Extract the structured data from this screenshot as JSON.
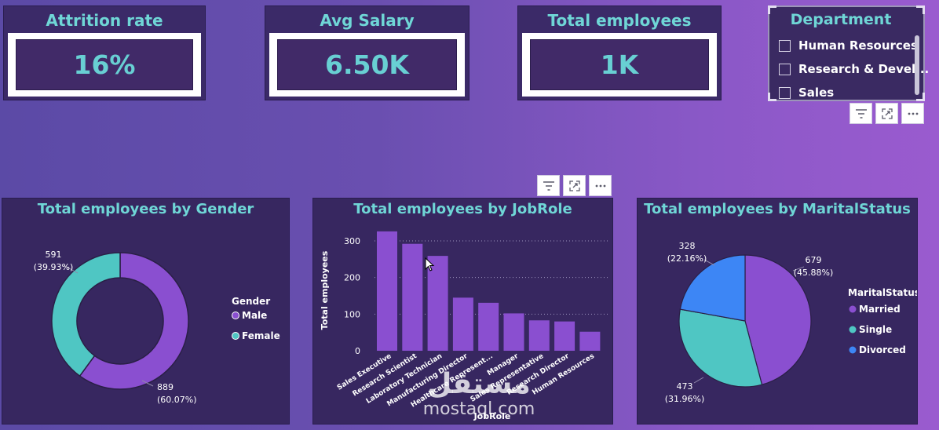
{
  "kpis": [
    {
      "title": "Attrition rate",
      "value": "16%"
    },
    {
      "title": "Avg Salary",
      "value": "6.50K"
    },
    {
      "title": "Total employees",
      "value": "1K"
    }
  ],
  "department": {
    "title": "Department",
    "options": [
      "Human Resources",
      "Research & Devel...",
      "Sales"
    ]
  },
  "toolbar": {
    "filter_icon": "filter-icon",
    "focus_icon": "focus-mode-icon",
    "more_icon": "more-options-icon"
  },
  "colors": {
    "purple": "#8a4fd0",
    "teal": "#4fc6c3",
    "blue": "#3d86f5",
    "title": "#6fd6d6"
  },
  "chart_data": [
    {
      "type": "pie",
      "title": "Total employees by Gender",
      "legend_title": "Gender",
      "donut": true,
      "slices": [
        {
          "name": "Male",
          "value": 889,
          "label": "889",
          "pct": "(60.07%)"
        },
        {
          "name": "Female",
          "value": 591,
          "label": "591",
          "pct": "(39.93%)"
        }
      ]
    },
    {
      "type": "bar",
      "title": "Total employees by JobRole",
      "ylabel": "Total employees",
      "xlabel": "JobRole",
      "ylim": [
        0,
        330
      ],
      "yticks": [
        "0",
        "100",
        "200",
        "300"
      ],
      "categories": [
        "Sales Executive",
        "Research Scientist",
        "Laboratory Technician",
        "Manufacturing Director",
        "Healthcare Represent...",
        "Manager",
        "Sales Representative",
        "Research Director",
        "Human Resources"
      ],
      "values": [
        326,
        292,
        259,
        145,
        131,
        102,
        83,
        80,
        52
      ],
      "grid": true
    },
    {
      "type": "pie",
      "title": "Total employees by MaritalStatus",
      "legend_title": "MaritalStatus",
      "slices": [
        {
          "name": "Married",
          "value": 679,
          "label": "679",
          "pct": "(45.88%)"
        },
        {
          "name": "Single",
          "value": 473,
          "label": "473",
          "pct": "(31.96%)"
        },
        {
          "name": "Divorced",
          "value": 328,
          "label": "328",
          "pct": "(22.16%)"
        }
      ]
    }
  ],
  "watermark": {
    "arabic": "مستقل",
    "latin": "mostaql.com"
  }
}
